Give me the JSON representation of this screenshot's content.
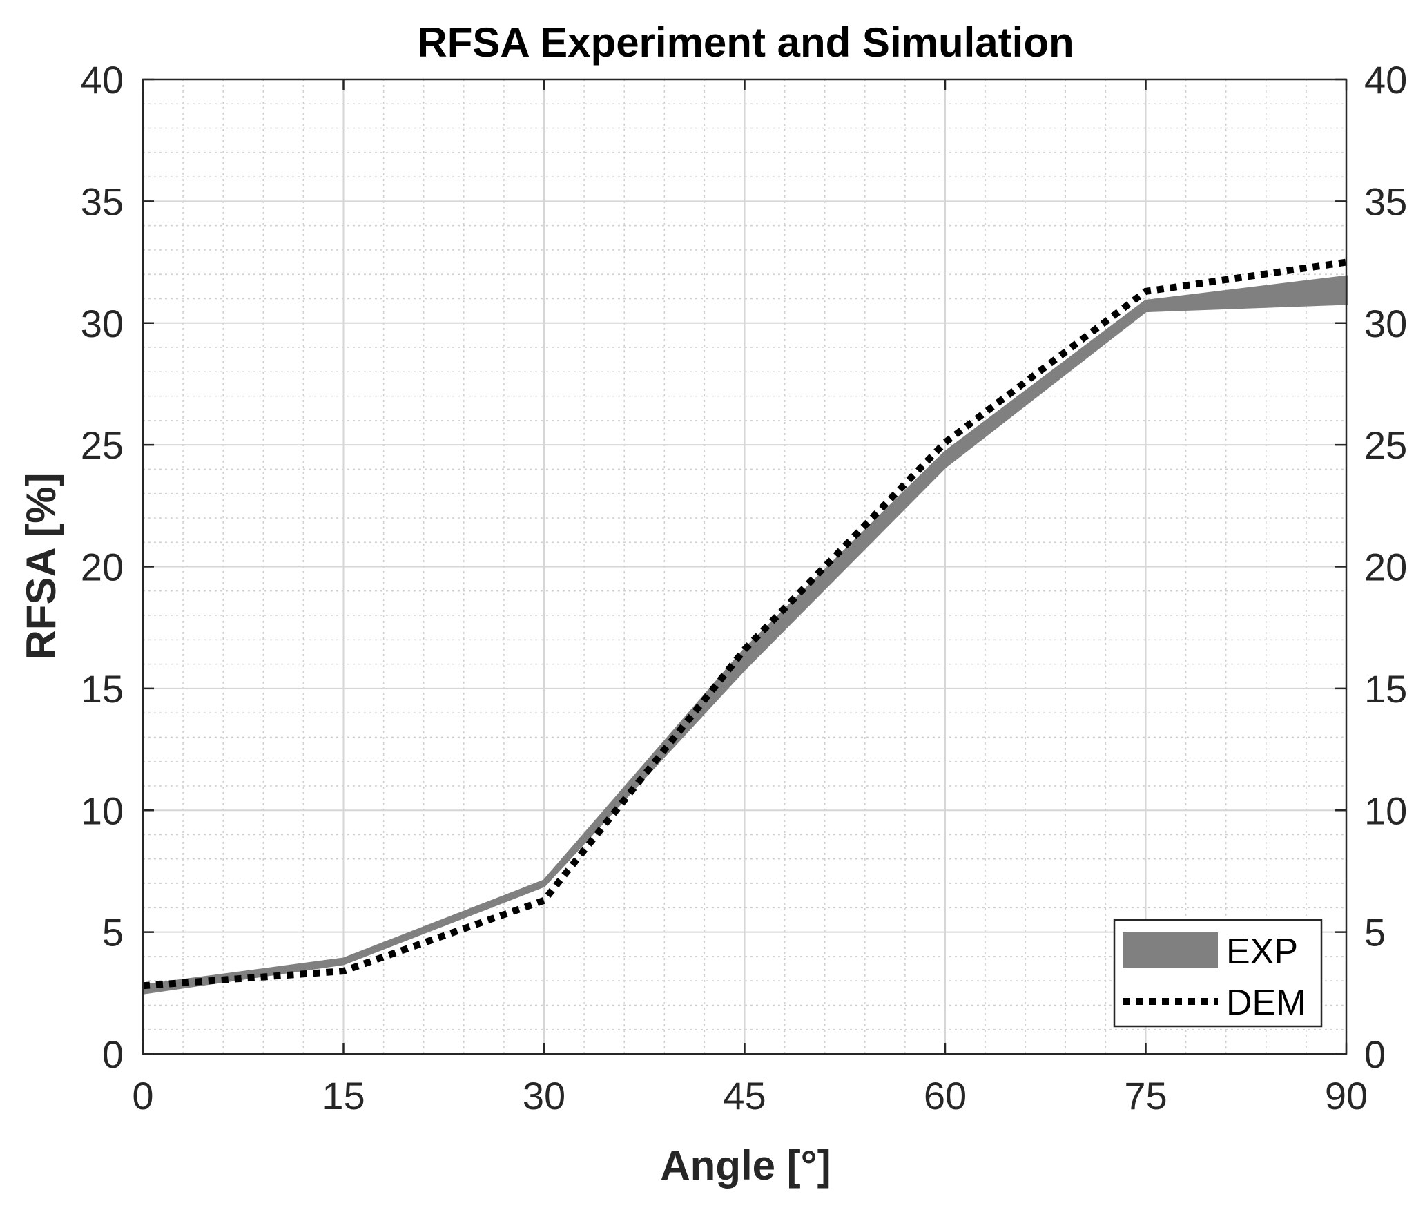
{
  "chart_data": {
    "type": "line",
    "title": "RFSA Experiment and Simulation",
    "xlabel": "Angle [°]",
    "ylabel": "RFSA [%]",
    "xlim": [
      0,
      90
    ],
    "ylim": [
      0,
      40
    ],
    "xticks": [
      0,
      15,
      30,
      45,
      60,
      75,
      90
    ],
    "yticks": [
      0,
      5,
      10,
      15,
      20,
      25,
      30,
      35,
      40
    ],
    "grid": true,
    "minor_grid": true,
    "right_axis_mirrored": true,
    "legend_position": "bottom-right",
    "series": [
      {
        "name": "EXP",
        "style": "band",
        "color": "#808080",
        "x": [
          0,
          15,
          30,
          45,
          60,
          75,
          90
        ],
        "lower": [
          2.5,
          3.7,
          6.9,
          15.8,
          24.1,
          30.5,
          30.8
        ],
        "upper": [
          2.8,
          3.9,
          7.1,
          16.6,
          24.7,
          30.9,
          31.9
        ]
      },
      {
        "name": "DEM",
        "style": "dotted",
        "color": "#000000",
        "x": [
          0,
          15,
          30,
          45,
          60,
          75,
          90
        ],
        "values": [
          2.8,
          3.4,
          6.3,
          16.6,
          25.1,
          31.3,
          32.5
        ]
      }
    ]
  }
}
